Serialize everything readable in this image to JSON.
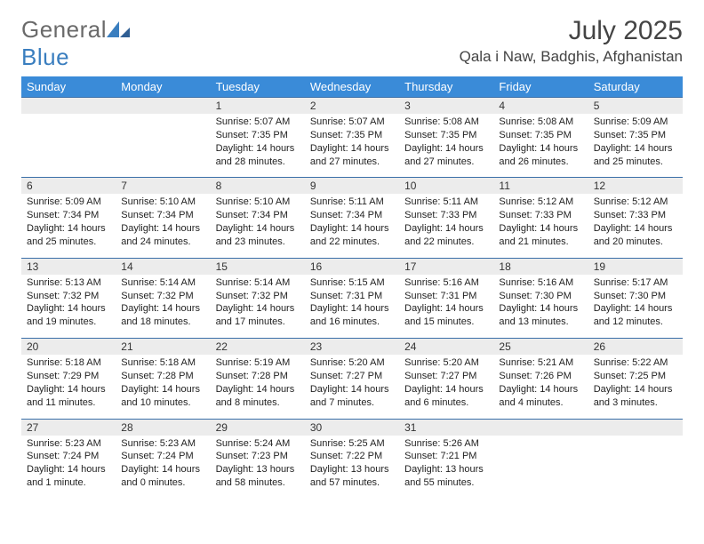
{
  "brand": {
    "name_a": "General",
    "name_b": "Blue"
  },
  "title": "July 2025",
  "location": "Qala i Naw, Badghis, Afghanistan",
  "colors": {
    "header_bg": "#3a8bd8",
    "header_text": "#ffffff",
    "daynum_bg": "#ececec",
    "rule": "#3a6fa8",
    "brand_gray": "#6a6a6a",
    "brand_blue": "#3a7ebf",
    "text": "#222222",
    "page_bg": "#ffffff"
  },
  "weekdays": [
    "Sunday",
    "Monday",
    "Tuesday",
    "Wednesday",
    "Thursday",
    "Friday",
    "Saturday"
  ],
  "weeks": [
    [
      null,
      null,
      {
        "n": "1",
        "sr": "Sunrise: 5:07 AM",
        "ss": "Sunset: 7:35 PM",
        "dl": "Daylight: 14 hours and 28 minutes."
      },
      {
        "n": "2",
        "sr": "Sunrise: 5:07 AM",
        "ss": "Sunset: 7:35 PM",
        "dl": "Daylight: 14 hours and 27 minutes."
      },
      {
        "n": "3",
        "sr": "Sunrise: 5:08 AM",
        "ss": "Sunset: 7:35 PM",
        "dl": "Daylight: 14 hours and 27 minutes."
      },
      {
        "n": "4",
        "sr": "Sunrise: 5:08 AM",
        "ss": "Sunset: 7:35 PM",
        "dl": "Daylight: 14 hours and 26 minutes."
      },
      {
        "n": "5",
        "sr": "Sunrise: 5:09 AM",
        "ss": "Sunset: 7:35 PM",
        "dl": "Daylight: 14 hours and 25 minutes."
      }
    ],
    [
      {
        "n": "6",
        "sr": "Sunrise: 5:09 AM",
        "ss": "Sunset: 7:34 PM",
        "dl": "Daylight: 14 hours and 25 minutes."
      },
      {
        "n": "7",
        "sr": "Sunrise: 5:10 AM",
        "ss": "Sunset: 7:34 PM",
        "dl": "Daylight: 14 hours and 24 minutes."
      },
      {
        "n": "8",
        "sr": "Sunrise: 5:10 AM",
        "ss": "Sunset: 7:34 PM",
        "dl": "Daylight: 14 hours and 23 minutes."
      },
      {
        "n": "9",
        "sr": "Sunrise: 5:11 AM",
        "ss": "Sunset: 7:34 PM",
        "dl": "Daylight: 14 hours and 22 minutes."
      },
      {
        "n": "10",
        "sr": "Sunrise: 5:11 AM",
        "ss": "Sunset: 7:33 PM",
        "dl": "Daylight: 14 hours and 22 minutes."
      },
      {
        "n": "11",
        "sr": "Sunrise: 5:12 AM",
        "ss": "Sunset: 7:33 PM",
        "dl": "Daylight: 14 hours and 21 minutes."
      },
      {
        "n": "12",
        "sr": "Sunrise: 5:12 AM",
        "ss": "Sunset: 7:33 PM",
        "dl": "Daylight: 14 hours and 20 minutes."
      }
    ],
    [
      {
        "n": "13",
        "sr": "Sunrise: 5:13 AM",
        "ss": "Sunset: 7:32 PM",
        "dl": "Daylight: 14 hours and 19 minutes."
      },
      {
        "n": "14",
        "sr": "Sunrise: 5:14 AM",
        "ss": "Sunset: 7:32 PM",
        "dl": "Daylight: 14 hours and 18 minutes."
      },
      {
        "n": "15",
        "sr": "Sunrise: 5:14 AM",
        "ss": "Sunset: 7:32 PM",
        "dl": "Daylight: 14 hours and 17 minutes."
      },
      {
        "n": "16",
        "sr": "Sunrise: 5:15 AM",
        "ss": "Sunset: 7:31 PM",
        "dl": "Daylight: 14 hours and 16 minutes."
      },
      {
        "n": "17",
        "sr": "Sunrise: 5:16 AM",
        "ss": "Sunset: 7:31 PM",
        "dl": "Daylight: 14 hours and 15 minutes."
      },
      {
        "n": "18",
        "sr": "Sunrise: 5:16 AM",
        "ss": "Sunset: 7:30 PM",
        "dl": "Daylight: 14 hours and 13 minutes."
      },
      {
        "n": "19",
        "sr": "Sunrise: 5:17 AM",
        "ss": "Sunset: 7:30 PM",
        "dl": "Daylight: 14 hours and 12 minutes."
      }
    ],
    [
      {
        "n": "20",
        "sr": "Sunrise: 5:18 AM",
        "ss": "Sunset: 7:29 PM",
        "dl": "Daylight: 14 hours and 11 minutes."
      },
      {
        "n": "21",
        "sr": "Sunrise: 5:18 AM",
        "ss": "Sunset: 7:28 PM",
        "dl": "Daylight: 14 hours and 10 minutes."
      },
      {
        "n": "22",
        "sr": "Sunrise: 5:19 AM",
        "ss": "Sunset: 7:28 PM",
        "dl": "Daylight: 14 hours and 8 minutes."
      },
      {
        "n": "23",
        "sr": "Sunrise: 5:20 AM",
        "ss": "Sunset: 7:27 PM",
        "dl": "Daylight: 14 hours and 7 minutes."
      },
      {
        "n": "24",
        "sr": "Sunrise: 5:20 AM",
        "ss": "Sunset: 7:27 PM",
        "dl": "Daylight: 14 hours and 6 minutes."
      },
      {
        "n": "25",
        "sr": "Sunrise: 5:21 AM",
        "ss": "Sunset: 7:26 PM",
        "dl": "Daylight: 14 hours and 4 minutes."
      },
      {
        "n": "26",
        "sr": "Sunrise: 5:22 AM",
        "ss": "Sunset: 7:25 PM",
        "dl": "Daylight: 14 hours and 3 minutes."
      }
    ],
    [
      {
        "n": "27",
        "sr": "Sunrise: 5:23 AM",
        "ss": "Sunset: 7:24 PM",
        "dl": "Daylight: 14 hours and 1 minute."
      },
      {
        "n": "28",
        "sr": "Sunrise: 5:23 AM",
        "ss": "Sunset: 7:24 PM",
        "dl": "Daylight: 14 hours and 0 minutes."
      },
      {
        "n": "29",
        "sr": "Sunrise: 5:24 AM",
        "ss": "Sunset: 7:23 PM",
        "dl": "Daylight: 13 hours and 58 minutes."
      },
      {
        "n": "30",
        "sr": "Sunrise: 5:25 AM",
        "ss": "Sunset: 7:22 PM",
        "dl": "Daylight: 13 hours and 57 minutes."
      },
      {
        "n": "31",
        "sr": "Sunrise: 5:26 AM",
        "ss": "Sunset: 7:21 PM",
        "dl": "Daylight: 13 hours and 55 minutes."
      },
      null,
      null
    ]
  ]
}
